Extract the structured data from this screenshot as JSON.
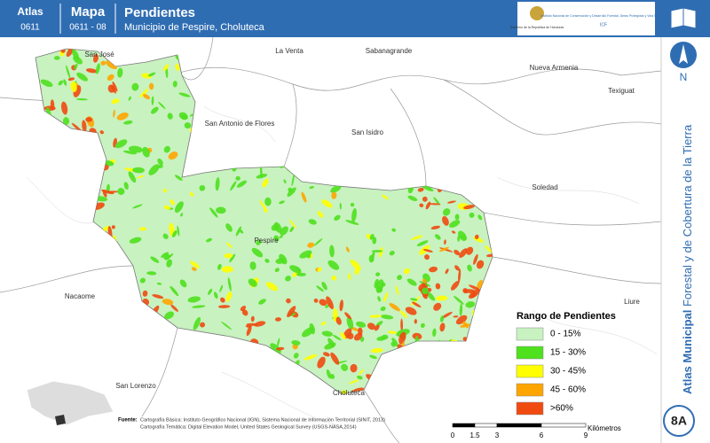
{
  "header": {
    "atlas_label": "Atlas",
    "atlas_code": "0611",
    "map_label": "Mapa",
    "map_code": "0611 - 08",
    "title": "Pendientes",
    "subtitle": "Municipio de Pespire, Choluteca",
    "logo_left": "Gobierno de la República de Honduras",
    "logo_right": "Instituto Nacional de Conservación y Desarrollo Forestal, Áreas Protegidas y Vida Silvestre",
    "logo_right_short": "ICF"
  },
  "places": [
    "San José",
    "La Venta",
    "Sabanagrande",
    "Nueva Armenia",
    "Texiguat",
    "San Antonio de Flores",
    "San Isidro",
    "Soledad",
    "Pespire",
    "Nacaome",
    "Liure",
    "San Lorenzo",
    "Choluteca"
  ],
  "legend": {
    "title": "Rango de Pendientes",
    "items": [
      {
        "label": "0 - 15%",
        "color": "#c8f2c0"
      },
      {
        "label": "15 - 30%",
        "color": "#4fe01e"
      },
      {
        "label": "30 - 45%",
        "color": "#ffff00"
      },
      {
        "label": "45 - 60%",
        "color": "#ffa500"
      },
      {
        "label": ">60%",
        "color": "#f04a10"
      }
    ]
  },
  "sources": {
    "label": "Fuente:",
    "basic": "Cartografía Básica: Instituto Geográfico Nacional (IGN), Sistema Nacional de Información Territorial (SINIT, 2013)",
    "thematic": "Cartografía Temática: Digital Elevation Model, United States Geological Survey (USGS-NASA,2014)"
  },
  "scale": {
    "ticks": [
      "0",
      "1.5",
      "3",
      "6",
      "9"
    ],
    "unit": "Kilómetros"
  },
  "side": {
    "atlas": "Atlas Municipal",
    "rest": "Forestal y de Cobertura de la Tierra",
    "north": "N",
    "page": "8A"
  }
}
